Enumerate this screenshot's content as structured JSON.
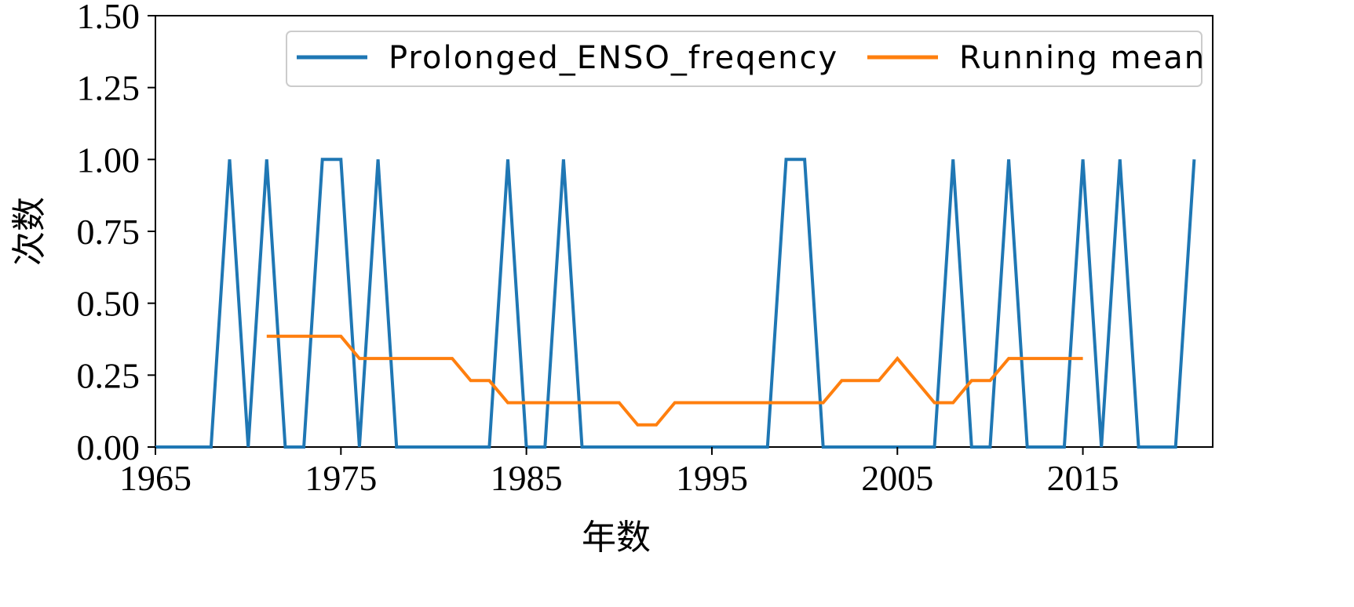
{
  "chart_data": {
    "type": "line",
    "xlabel": "年数",
    "ylabel": "次数",
    "xlim": [
      1965,
      2022
    ],
    "ylim": [
      0,
      1.5
    ],
    "x_ticks": [
      1965,
      1975,
      1985,
      1995,
      2005,
      2015
    ],
    "y_ticks": [
      0,
      0.25,
      0.5,
      0.75,
      1.0,
      1.25,
      1.5
    ],
    "y_tick_labels": [
      "0.00",
      "0.25",
      "0.50",
      "0.75",
      "1.00",
      "1.25",
      "1.50"
    ],
    "grid": false,
    "legend_position": "top-right",
    "series": [
      {
        "name": "Prolonged_ENSO_freqency",
        "color": "#1f77b4",
        "x": [
          1965,
          1966,
          1967,
          1968,
          1969,
          1970,
          1971,
          1972,
          1973,
          1974,
          1975,
          1976,
          1977,
          1978,
          1979,
          1980,
          1981,
          1982,
          1983,
          1984,
          1985,
          1986,
          1987,
          1988,
          1989,
          1990,
          1991,
          1992,
          1993,
          1994,
          1995,
          1996,
          1997,
          1998,
          1999,
          2000,
          2001,
          2002,
          2003,
          2004,
          2005,
          2006,
          2007,
          2008,
          2009,
          2010,
          2011,
          2012,
          2013,
          2014,
          2015,
          2016,
          2017,
          2018,
          2019,
          2020,
          2021
        ],
        "y": [
          0,
          0,
          0,
          0,
          1,
          0,
          1,
          0,
          0,
          1,
          1,
          0,
          1,
          0,
          0,
          0,
          0,
          0,
          0,
          1,
          0,
          0,
          1,
          0,
          0,
          0,
          0,
          0,
          0,
          0,
          0,
          0,
          0,
          0,
          1,
          1,
          0,
          0,
          0,
          0,
          0,
          0,
          0,
          1,
          0,
          0,
          1,
          0,
          0,
          0,
          1,
          0,
          1,
          0,
          0,
          0,
          1
        ]
      },
      {
        "name": "Running mean",
        "color": "#ff7f0e",
        "x": [
          1971,
          1972,
          1973,
          1974,
          1975,
          1976,
          1977,
          1978,
          1979,
          1980,
          1981,
          1982,
          1983,
          1984,
          1985,
          1986,
          1987,
          1988,
          1989,
          1990,
          1991,
          1992,
          1993,
          1994,
          1995,
          1996,
          1997,
          1998,
          1999,
          2000,
          2001,
          2002,
          2003,
          2004,
          2005,
          2006,
          2007,
          2008,
          2009,
          2010,
          2011,
          2012,
          2013,
          2014,
          2015
        ],
        "y": [
          0.385,
          0.385,
          0.385,
          0.385,
          0.385,
          0.308,
          0.308,
          0.308,
          0.308,
          0.308,
          0.308,
          0.231,
          0.231,
          0.154,
          0.154,
          0.154,
          0.154,
          0.154,
          0.154,
          0.154,
          0.077,
          0.077,
          0.154,
          0.154,
          0.154,
          0.154,
          0.154,
          0.154,
          0.154,
          0.154,
          0.154,
          0.231,
          0.231,
          0.231,
          0.308,
          0.231,
          0.154,
          0.154,
          0.231,
          0.231,
          0.308,
          0.308,
          0.308,
          0.308,
          0.308
        ]
      }
    ]
  }
}
